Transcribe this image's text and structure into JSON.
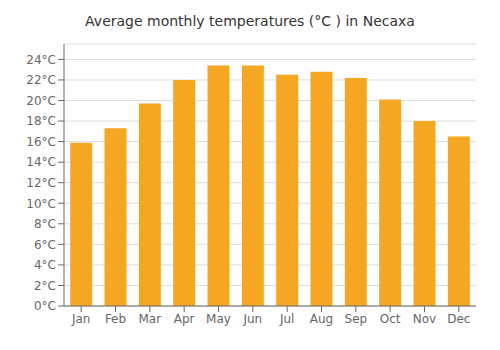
{
  "chart_data": {
    "type": "bar",
    "title": "Average monthly temperatures (°C ) in Necaxa",
    "categories": [
      "Jan",
      "Feb",
      "Mar",
      "Apr",
      "May",
      "Jun",
      "Jul",
      "Aug",
      "Sep",
      "Oct",
      "Nov",
      "Dec"
    ],
    "values": [
      15.9,
      17.3,
      19.7,
      22.0,
      23.4,
      23.4,
      22.5,
      22.8,
      22.2,
      20.1,
      18.0,
      16.5
    ],
    "color": "#F5A623",
    "ylim": [
      0,
      25.5
    ],
    "yticks": [
      {
        "value": 0,
        "label": "0°C"
      },
      {
        "value": 2,
        "label": "2°C"
      },
      {
        "value": 4,
        "label": "4°C"
      },
      {
        "value": 6,
        "label": "6°C"
      },
      {
        "value": 8,
        "label": "8°C"
      },
      {
        "value": 10,
        "label": "10°C"
      },
      {
        "value": 12,
        "label": "12°C"
      },
      {
        "value": 14,
        "label": "14°C"
      },
      {
        "value": 16,
        "label": "16°C"
      },
      {
        "value": 18,
        "label": "18°C"
      },
      {
        "value": 20,
        "label": "20°C"
      },
      {
        "value": 22,
        "label": "22°C"
      },
      {
        "value": 24,
        "label": "24°C"
      }
    ],
    "grid": true
  }
}
